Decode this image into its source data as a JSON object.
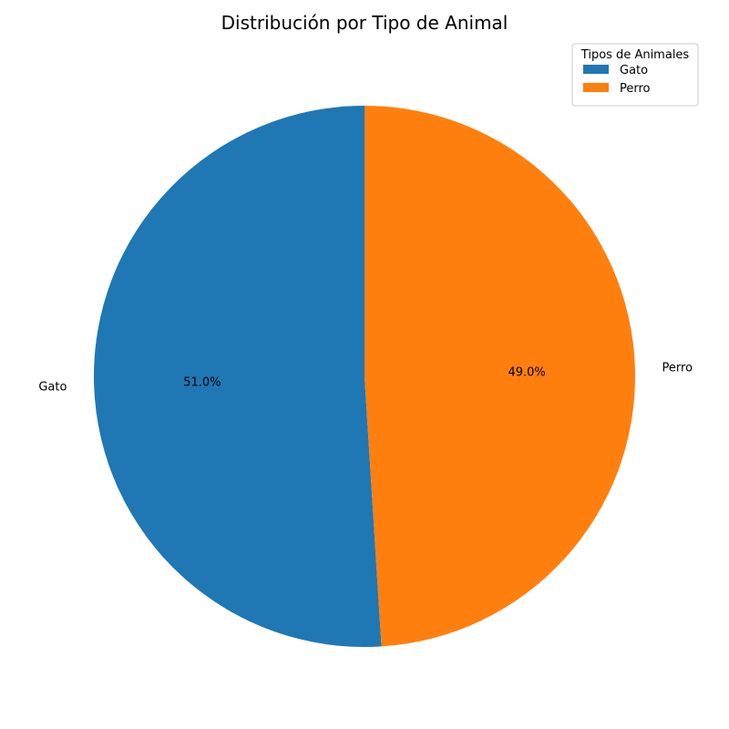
{
  "chart_data": {
    "type": "pie",
    "title": "Distribución por Tipo de Animal",
    "slices": [
      {
        "label": "Gato",
        "value": 51.0,
        "pct_label": "51.0%",
        "color": "#1f77b4"
      },
      {
        "label": "Perro",
        "value": 49.0,
        "pct_label": "49.0%",
        "color": "#ff7f0e"
      }
    ],
    "start_angle_deg": 90,
    "direction": "counterclockwise",
    "legend": {
      "title": "Tipos de Animales",
      "placement": "top-right",
      "entries": [
        "Gato",
        "Perro"
      ]
    }
  }
}
